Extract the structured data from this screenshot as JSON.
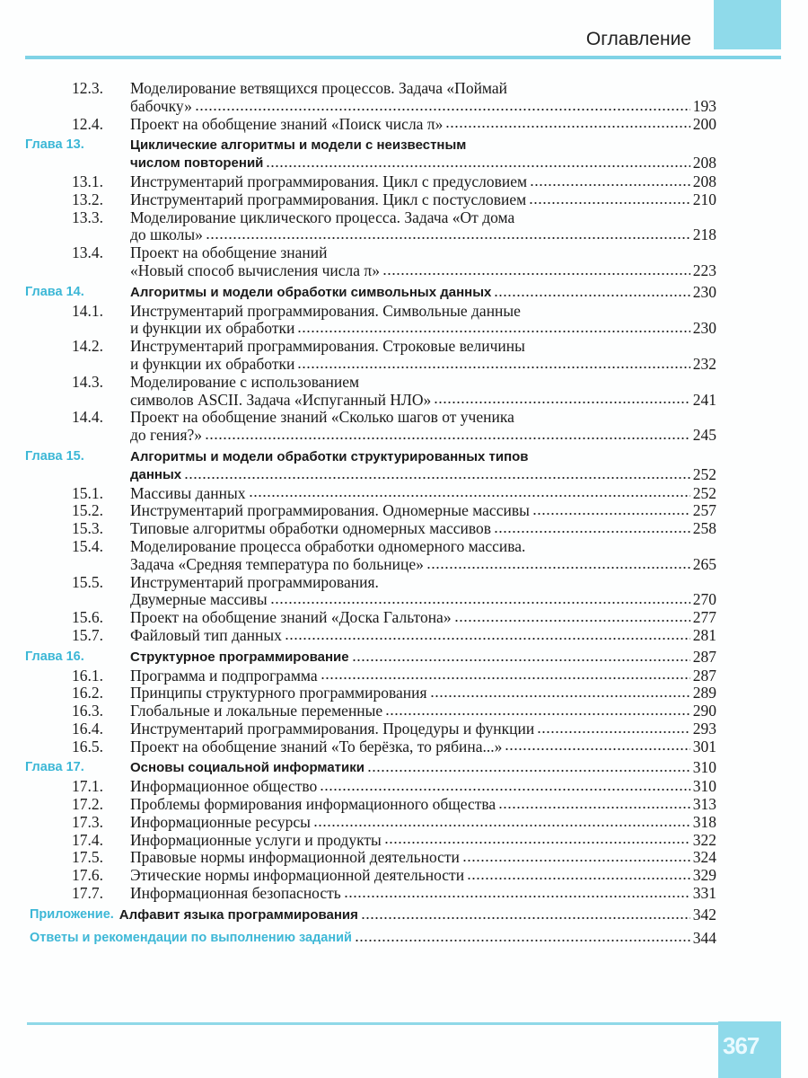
{
  "header": {
    "title": "Оглавление"
  },
  "footer": {
    "page_number": "367"
  },
  "colors": {
    "accent": "#8fdaea",
    "chapter_label": "#3cb7d6"
  },
  "toc": [
    {
      "type": "section",
      "num": "12.3.",
      "lines": [
        "Моделирование ветвящихся процессов. Задача «Поймай",
        "бабочку»"
      ],
      "page": "193"
    },
    {
      "type": "section",
      "num": "12.4.",
      "lines": [
        "Проект на обобщение знаний «Поиск числа π»"
      ],
      "page": "200"
    },
    {
      "type": "chapter",
      "num": "Глава 13.",
      "lines": [
        "Циклические алгоритмы и модели с неизвестным",
        "числом повторений"
      ],
      "page": "208"
    },
    {
      "type": "section",
      "num": "13.1.",
      "lines": [
        "Инструментарий программирования. Цикл с предусловием"
      ],
      "page": "208"
    },
    {
      "type": "section",
      "num": "13.2.",
      "lines": [
        "Инструментарий программирования. Цикл с постусловием"
      ],
      "page": "210"
    },
    {
      "type": "section",
      "num": "13.3.",
      "lines": [
        "Моделирование циклического процесса. Задача «От дома",
        "до школы»"
      ],
      "page": "218"
    },
    {
      "type": "section",
      "num": "13.4.",
      "lines": [
        "Проект на обобщение знаний",
        "«Новый способ вычисления числа π»"
      ],
      "page": "223"
    },
    {
      "type": "chapter",
      "num": "Глава 14.",
      "lines": [
        "Алгоритмы и модели обработки символьных данных"
      ],
      "page": "230"
    },
    {
      "type": "section",
      "num": "14.1.",
      "lines": [
        "Инструментарий программирования. Символьные данные",
        "и функции их обработки"
      ],
      "page": "230"
    },
    {
      "type": "section",
      "num": "14.2.",
      "lines": [
        "Инструментарий программирования. Строковые величины",
        "и функции их обработки"
      ],
      "page": "232"
    },
    {
      "type": "section",
      "num": "14.3.",
      "lines": [
        "Моделирование с использованием",
        "символов ASCII. Задача «Испуганный НЛО»"
      ],
      "page": "241"
    },
    {
      "type": "section",
      "num": "14.4.",
      "lines": [
        "Проект на обобщение знаний «Сколько шагов от ученика",
        "до гения?»"
      ],
      "page": "245"
    },
    {
      "type": "chapter",
      "num": "Глава 15.",
      "lines": [
        "Алгоритмы и модели обработки структурированных типов",
        "данных"
      ],
      "page": "252"
    },
    {
      "type": "section",
      "num": "15.1.",
      "lines": [
        "Массивы данных"
      ],
      "page": "252"
    },
    {
      "type": "section",
      "num": "15.2.",
      "lines": [
        "Инструментарий программирования. Одномерные массивы"
      ],
      "page": "257"
    },
    {
      "type": "section",
      "num": "15.3.",
      "lines": [
        "Типовые алгоритмы обработки одномерных массивов"
      ],
      "page": "258"
    },
    {
      "type": "section",
      "num": "15.4.",
      "lines": [
        "Моделирование процесса обработки одномерного массива.",
        "Задача «Средняя температура по больнице»"
      ],
      "page": "265"
    },
    {
      "type": "section",
      "num": "15.5.",
      "lines": [
        "Инструментарий программирования.",
        "Двумерные массивы"
      ],
      "page": "270"
    },
    {
      "type": "section",
      "num": "15.6.",
      "lines": [
        "Проект на обобщение знаний «Доска Гальтона»"
      ],
      "page": "277"
    },
    {
      "type": "section",
      "num": "15.7.",
      "lines": [
        "Файловый тип данных"
      ],
      "page": "281"
    },
    {
      "type": "chapter",
      "num": "Глава 16.",
      "lines": [
        "Структурное программирование"
      ],
      "page": "287"
    },
    {
      "type": "section",
      "num": "16.1.",
      "lines": [
        "Программа и подпрограмма"
      ],
      "page": "287"
    },
    {
      "type": "section",
      "num": "16.2.",
      "lines": [
        "Принципы структурного программирования"
      ],
      "page": "289"
    },
    {
      "type": "section",
      "num": "16.3.",
      "lines": [
        "Глобальные и локальные переменные"
      ],
      "page": "290"
    },
    {
      "type": "section",
      "num": "16.4.",
      "lines": [
        "Инструментарий программирования. Процедуры и функции"
      ],
      "page": "293"
    },
    {
      "type": "section",
      "num": "16.5.",
      "lines": [
        "Проект на обобщение знаний «То берёзка, то рябина...»"
      ],
      "page": "301"
    },
    {
      "type": "chapter",
      "num": "Глава 17.",
      "lines": [
        "Основы социальной информатики"
      ],
      "page": "310"
    },
    {
      "type": "section",
      "num": "17.1.",
      "lines": [
        "Информационное общество"
      ],
      "page": "310"
    },
    {
      "type": "section",
      "num": "17.2.",
      "lines": [
        "Проблемы формирования информационного общества"
      ],
      "page": "313"
    },
    {
      "type": "section",
      "num": "17.3.",
      "lines": [
        "Информационные ресурсы"
      ],
      "page": "318"
    },
    {
      "type": "section",
      "num": "17.4.",
      "lines": [
        "Информационные услуги и продукты"
      ],
      "page": "322"
    },
    {
      "type": "section",
      "num": "17.5.",
      "lines": [
        "Правовые нормы информационной деятельности"
      ],
      "page": "324"
    },
    {
      "type": "section",
      "num": "17.6.",
      "lines": [
        "Этические нормы информационной деятельности"
      ],
      "page": "329"
    },
    {
      "type": "section",
      "num": "17.7.",
      "lines": [
        "Информационная безопасность"
      ],
      "page": "331"
    },
    {
      "type": "appendix",
      "label": "Приложение.",
      "lines": [
        "Алфавит языка программирования"
      ],
      "page": "342"
    },
    {
      "type": "answers",
      "lines": [
        "Ответы и рекомендации по выполнению заданий"
      ],
      "page": "344"
    }
  ]
}
